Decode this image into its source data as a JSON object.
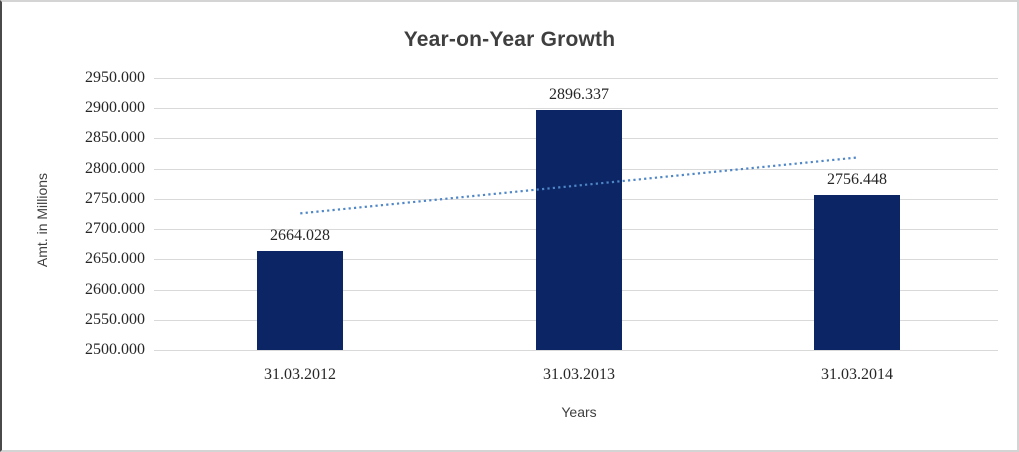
{
  "chart_data": {
    "type": "bar",
    "title": "Year-on-Year Growth",
    "xlabel": "Years",
    "ylabel": "Amt. in Millions",
    "categories": [
      "31.03.2012",
      "31.03.2013",
      "31.03.2014"
    ],
    "values": [
      2664.028,
      2896.337,
      2756.448
    ],
    "data_labels": [
      "2664.028",
      "2896.337",
      "2756.448"
    ],
    "ylim": [
      2500,
      2950
    ],
    "ytick_step": 50,
    "ytick_labels": [
      "2500.000",
      "2550.000",
      "2600.000",
      "2650.000",
      "2700.000",
      "2750.000",
      "2800.000",
      "2850.000",
      "2900.000",
      "2950.000"
    ],
    "grid": true,
    "legend_position": "none",
    "trendline": {
      "type": "linear",
      "style": "dotted",
      "color": "#4f86c6"
    },
    "colors": {
      "bar": "#0b2565",
      "gridline": "#d9d9d9",
      "title_text": "#3f3f3f",
      "axis_title_text": "#3f3f3f",
      "tick_text": "#262626",
      "frame_border_light": "#d4d4d4",
      "frame_border_dark": "#4a4a4a"
    }
  }
}
